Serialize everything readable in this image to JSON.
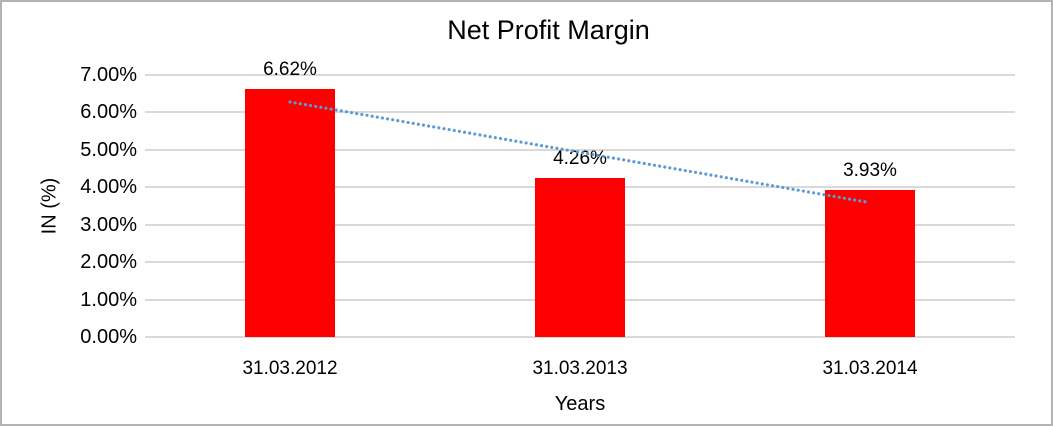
{
  "chart_data": {
    "type": "bar",
    "title": "Net Profit Margin",
    "xlabel": "Years",
    "ylabel": "IN (%)",
    "categories": [
      "31.03.2012",
      "31.03.2013",
      "31.03.2014"
    ],
    "values": [
      6.62,
      4.26,
      3.93
    ],
    "data_labels": [
      "6.62%",
      "4.26%",
      "3.93%"
    ],
    "ylim": [
      0,
      7
    ],
    "ytick_step": 1,
    "ytick_labels": [
      "0.00%",
      "1.00%",
      "2.00%",
      "3.00%",
      "4.00%",
      "5.00%",
      "6.00%",
      "7.00%"
    ],
    "grid": true,
    "legend": "none",
    "bar_color": "#ff0000",
    "gridline_color": "#d9d9d9",
    "trendline": {
      "style": "dotted",
      "color": "#5b9bd5",
      "start_value": 6.28,
      "end_value": 3.59
    }
  }
}
